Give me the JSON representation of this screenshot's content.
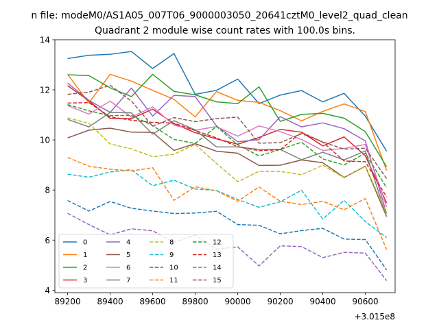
{
  "figure": {
    "suptitle": "n file: modeM0/AS1A05_007T06_9000003050_20641cztM0_level2_quad_clean",
    "offset_label": "+3.015e8"
  },
  "chart_data": {
    "type": "line",
    "title": "Quadrant 2 module wise count rates with 100.0s bins.",
    "xlabel": "",
    "ylabel": "",
    "x_offset": 301500000,
    "x": [
      89200,
      89300,
      89400,
      89500,
      89600,
      89700,
      89800,
      89900,
      90000,
      90100,
      90200,
      90300,
      90400,
      90500,
      90600,
      90700
    ],
    "xticks": [
      89200,
      89400,
      89600,
      89800,
      90000,
      90200,
      90400,
      90600
    ],
    "xtick_labels": [
      "89200",
      "89400",
      "89600",
      "89800",
      "90000",
      "90200",
      "90400",
      "90600"
    ],
    "yticks": [
      4,
      6,
      8,
      10,
      12,
      14
    ],
    "ytick_labels": [
      "4",
      "6",
      "8",
      "10",
      "12",
      "14"
    ],
    "xlim": [
      89140,
      90740
    ],
    "ylim": [
      3.9,
      14.0
    ],
    "grid": false,
    "legend": {
      "placement": "lower-left",
      "columns": 4
    },
    "series": [
      {
        "name": "0",
        "color": "#1f77b4",
        "dash": "solid",
        "values": [
          13.25,
          13.38,
          13.42,
          13.53,
          12.85,
          13.45,
          11.82,
          11.98,
          12.43,
          11.45,
          11.79,
          11.97,
          11.52,
          11.86,
          10.95,
          9.55
        ]
      },
      {
        "name": "1",
        "color": "#ff7f0e",
        "dash": "solid",
        "values": [
          12.62,
          11.48,
          12.62,
          12.35,
          11.98,
          11.62,
          10.92,
          11.93,
          11.58,
          11.5,
          11.17,
          10.76,
          11.14,
          11.44,
          11.13,
          8.78
        ]
      },
      {
        "name": "2",
        "color": "#2ca02c",
        "dash": "solid",
        "values": [
          12.6,
          12.57,
          12.08,
          11.73,
          12.62,
          11.94,
          11.8,
          11.52,
          11.45,
          12.12,
          10.74,
          11.02,
          11.06,
          10.87,
          10.33,
          8.93
        ]
      },
      {
        "name": "3",
        "color": "#d62728",
        "dash": "solid",
        "values": [
          12.17,
          11.56,
          10.86,
          10.85,
          11.23,
          10.65,
          10.29,
          10.04,
          9.83,
          10.1,
          10.42,
          10.31,
          9.76,
          10.12,
          9.37,
          7.48
        ]
      },
      {
        "name": "4",
        "color": "#9467bd",
        "dash": "solid",
        "values": [
          12.27,
          11.58,
          11.1,
          12.07,
          10.95,
          11.78,
          11.73,
          10.56,
          9.93,
          10.01,
          10.93,
          10.52,
          10.68,
          10.45,
          9.96,
          7.06
        ]
      },
      {
        "name": "5",
        "color": "#8c564b",
        "dash": "solid",
        "values": [
          10.08,
          10.39,
          10.47,
          10.31,
          10.3,
          9.58,
          9.85,
          9.55,
          9.47,
          8.98,
          8.99,
          9.2,
          9.09,
          8.5,
          8.95,
          6.94
        ]
      },
      {
        "name": "6",
        "color": "#e377c2",
        "dash": "solid",
        "values": [
          11.37,
          11.03,
          11.55,
          10.91,
          11.32,
          10.59,
          10.39,
          10.53,
          10.15,
          10.56,
          10.33,
          10.02,
          9.58,
          9.66,
          9.82,
          7.33
        ]
      },
      {
        "name": "7",
        "color": "#7f7f7f",
        "dash": "solid",
        "values": [
          10.82,
          10.52,
          11.1,
          11.08,
          10.23,
          10.77,
          10.4,
          9.72,
          9.72,
          9.62,
          9.62,
          9.21,
          9.51,
          9.2,
          9.56,
          6.93
        ]
      },
      {
        "name": "8",
        "color": "#bcbd22",
        "dash": "dashed",
        "values": [
          10.88,
          10.66,
          9.84,
          9.64,
          9.33,
          9.43,
          9.82,
          9.06,
          8.33,
          8.75,
          8.74,
          8.61,
          8.99,
          8.49,
          8.94,
          7.09
        ]
      },
      {
        "name": "9",
        "color": "#17becf",
        "dash": "dashed",
        "values": [
          8.63,
          8.51,
          8.72,
          8.81,
          8.17,
          8.39,
          8.04,
          7.98,
          7.62,
          7.31,
          7.53,
          7.99,
          6.84,
          7.59,
          6.74,
          6.1
        ]
      },
      {
        "name": "10",
        "color": "#1f77b4",
        "dash": "dashed",
        "values": [
          7.58,
          7.16,
          7.54,
          7.27,
          7.16,
          7.06,
          7.08,
          7.15,
          6.62,
          6.59,
          6.25,
          6.38,
          6.47,
          6.04,
          6.02,
          4.81
        ]
      },
      {
        "name": "11",
        "color": "#ff7f0e",
        "dash": "dashed",
        "values": [
          9.3,
          8.95,
          8.83,
          8.76,
          8.89,
          7.59,
          8.13,
          7.97,
          7.55,
          8.12,
          7.55,
          7.42,
          7.55,
          7.21,
          7.66,
          5.62
        ]
      },
      {
        "name": "12",
        "color": "#2ca02c",
        "dash": "dashed",
        "values": [
          11.41,
          11.16,
          10.97,
          10.98,
          10.57,
          10.02,
          9.86,
          10.54,
          9.8,
          9.36,
          9.62,
          9.91,
          9.24,
          9.0,
          9.47,
          8.09
        ]
      },
      {
        "name": "13",
        "color": "#d62728",
        "dash": "dashed",
        "values": [
          11.47,
          11.49,
          10.92,
          10.79,
          10.7,
          10.67,
          10.38,
          10.08,
          9.73,
          9.57,
          9.61,
          10.3,
          9.91,
          9.16,
          9.13,
          7.72
        ]
      },
      {
        "name": "14",
        "color": "#9467bd",
        "dash": "dashed",
        "values": [
          7.07,
          6.62,
          6.21,
          6.45,
          6.37,
          5.91,
          6.2,
          5.64,
          5.73,
          4.97,
          5.77,
          5.74,
          5.3,
          5.51,
          5.48,
          4.38
        ]
      },
      {
        "name": "15",
        "color": "#8c564b",
        "dash": "dashed",
        "values": [
          11.82,
          11.91,
          12.18,
          11.55,
          10.55,
          10.89,
          10.73,
          10.85,
          10.91,
          9.87,
          9.89,
          10.25,
          9.92,
          9.63,
          9.67,
          8.46
        ]
      }
    ]
  }
}
